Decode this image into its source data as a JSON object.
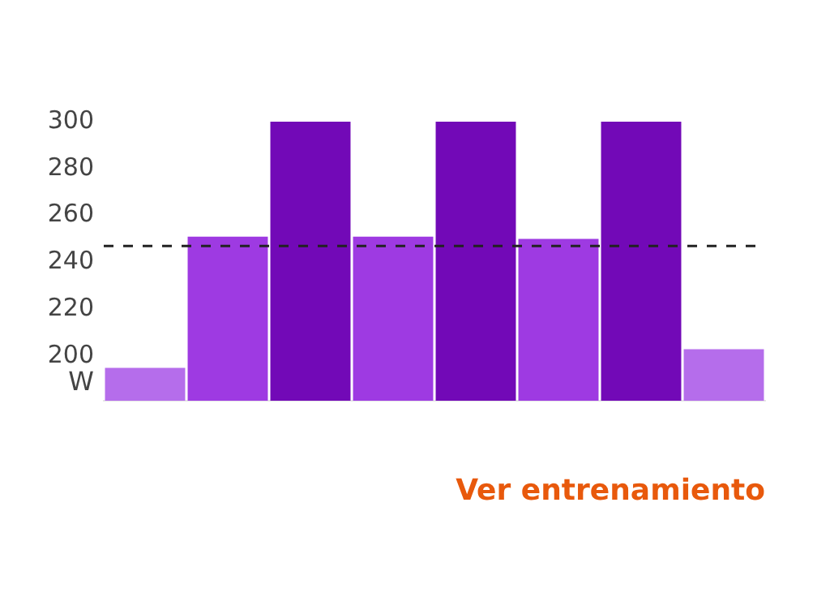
{
  "chart_data": {
    "type": "bar",
    "ylabel": "W",
    "categories": [
      null,
      null,
      null,
      null,
      null,
      null,
      null,
      null
    ],
    "values": [
      195,
      251,
      300,
      251,
      300,
      250,
      300,
      203
    ],
    "colors": [
      "#b56deb",
      "#9e3ae2",
      "#7209b7",
      "#9e3ae2",
      "#7209b7",
      "#9e3ae2",
      "#7209b7",
      "#b56deb"
    ],
    "ylim": [
      181,
      300
    ],
    "yticks": [
      200,
      220,
      240,
      260,
      280,
      300
    ],
    "grid": false,
    "legend": false,
    "ref_lines": [
      {
        "axis": "y",
        "value": 247,
        "color": "#222222",
        "line_style": "dashed"
      }
    ],
    "annotations": [
      "Ver entrenamiento"
    ]
  }
}
